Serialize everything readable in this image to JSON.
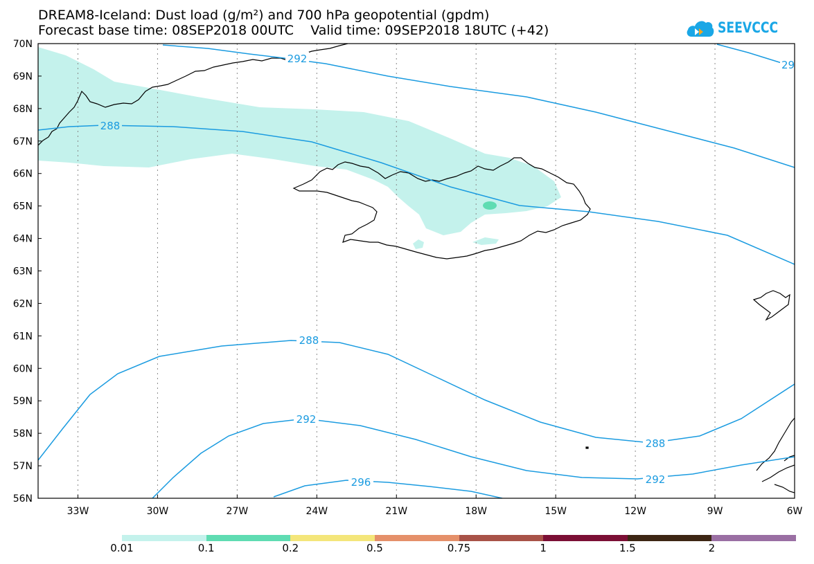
{
  "header": {
    "title_line1": "DREAM8-Iceland: Dust load (g/m²) and 700 hPa geopotential (gpdm)",
    "title_line2": "Forecast base time: 08SEP2018 00UTC    Valid time: 09SEP2018 18UTC (+42)"
  },
  "logo": {
    "text": "SEEVCCC",
    "icon": "cloud-arrow-icon",
    "color": "#1aa7e6"
  },
  "map": {
    "lat_labels": [
      "70N",
      "69N",
      "68N",
      "67N",
      "66N",
      "65N",
      "64N",
      "63N",
      "62N",
      "61N",
      "60N",
      "59N",
      "58N",
      "57N",
      "56N"
    ],
    "lon_labels": [
      "33W",
      "30W",
      "27W",
      "24W",
      "21W",
      "18W",
      "15W",
      "12W",
      "9W",
      "6W"
    ],
    "lat_range": [
      56,
      70
    ],
    "lon_range": [
      -34.5,
      -6
    ],
    "gridlines": true,
    "contour_color": "#1a9be0",
    "coastline_color": "#000000",
    "contour_labels": [
      "292",
      "29",
      "288",
      "288",
      "292",
      "288",
      "292",
      "296"
    ]
  },
  "colorbar": {
    "labels": [
      "0.01",
      "0.1",
      "0.2",
      "0.5",
      "0.75",
      "1",
      "1.5",
      "2"
    ],
    "colors": [
      "#c4f2ec",
      "#5fdcb2",
      "#f4e67a",
      "#e5906a",
      "#a85248",
      "#7b0f35",
      "#3d2614",
      "#9a6fa3"
    ]
  }
}
